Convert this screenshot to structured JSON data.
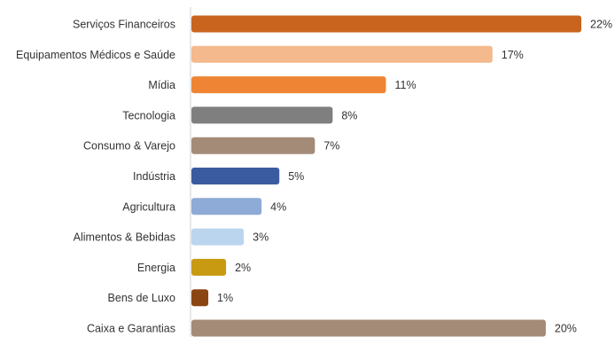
{
  "chart_data": {
    "type": "bar",
    "orientation": "horizontal",
    "title": "",
    "xlabel": "",
    "ylabel": "",
    "unit": "%",
    "xlim": [
      0,
      22
    ],
    "grid": false,
    "legend": "none",
    "categories": [
      "Serviços Financeiros",
      "Equipamentos Médicos e Saúde",
      "Mídia",
      "Tecnologia",
      "Consumo & Varejo",
      "Indústria",
      "Agricultura",
      "Alimentos & Bebidas",
      "Energia",
      "Bens de Luxo",
      "Caixa e Garantias"
    ],
    "values": [
      22,
      17,
      11,
      8,
      7,
      5,
      4,
      3,
      2,
      1,
      20
    ],
    "value_labels": [
      "22%",
      "17%",
      "11%",
      "8%",
      "7%",
      "5%",
      "4%",
      "3%",
      "2%",
      "1%",
      "20%"
    ],
    "colors": [
      "#c9641e",
      "#f4b98c",
      "#ef8534",
      "#7f7f7f",
      "#a48b78",
      "#3a5b9f",
      "#8eaad6",
      "#bcd5ef",
      "#c79a12",
      "#8b4513",
      "#a48b78"
    ]
  }
}
